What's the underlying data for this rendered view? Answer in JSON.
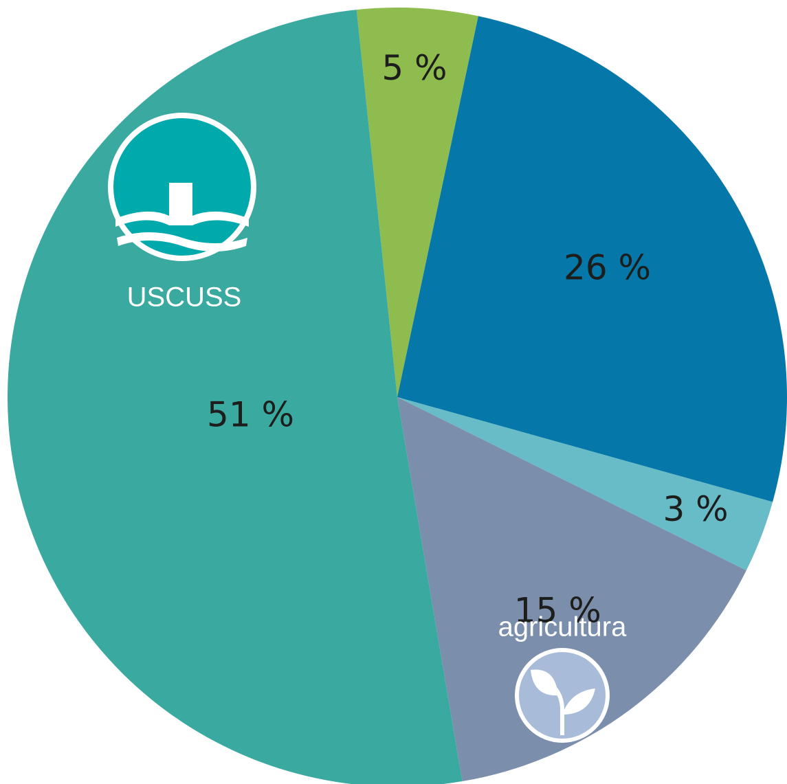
{
  "chart_data": {
    "type": "pie",
    "categories": [
      null,
      null,
      null,
      "agricultura",
      "USCUSS"
    ],
    "values": [
      5,
      26,
      3,
      15,
      51
    ],
    "value_labels": [
      "5 %",
      "26 %",
      "3 %",
      "15 %",
      "51 %"
    ],
    "colors": [
      "#8fbc4f",
      "#0577a8",
      "#67bcc8",
      "#7b8fad",
      "#3aa99f"
    ]
  }
}
